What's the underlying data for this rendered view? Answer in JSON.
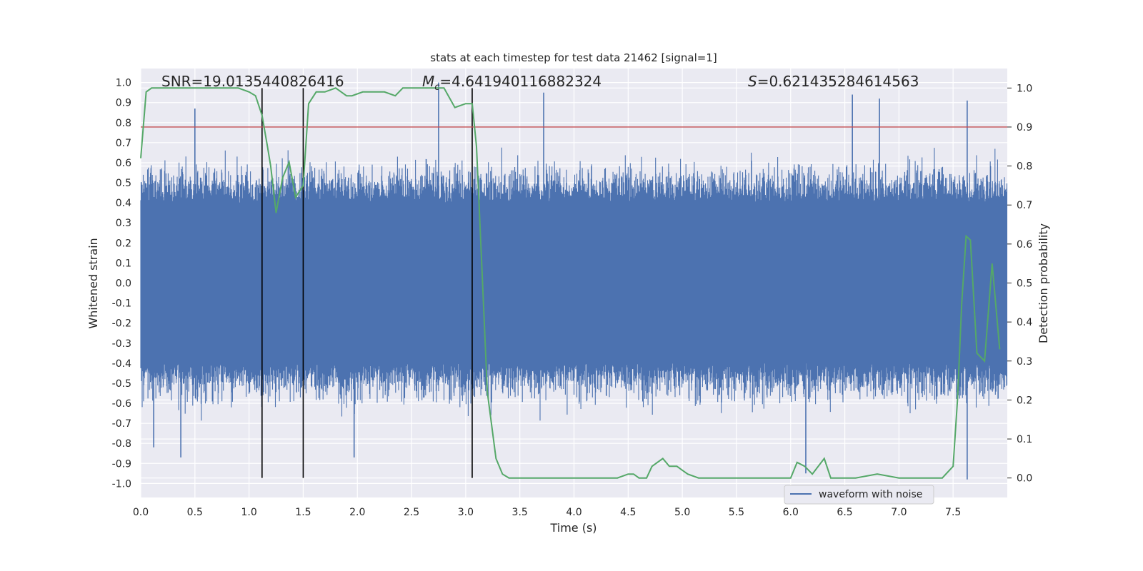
{
  "chart_data": {
    "type": "line",
    "title": "stats at each timestep for test data 21462 [signal=1]",
    "xlabel": "Time (s)",
    "ylabel_left": "Whitened strain",
    "ylabel_right": "Detection probability",
    "xlim": [
      0,
      8
    ],
    "ylim_left": [
      -1.07,
      1.07
    ],
    "ylim_right": [
      -0.05,
      1.05
    ],
    "x_ticks": [
      "0.0",
      "0.5",
      "1.0",
      "1.5",
      "2.0",
      "2.5",
      "3.0",
      "3.5",
      "4.0",
      "4.5",
      "5.0",
      "5.5",
      "6.0",
      "6.5",
      "7.0",
      "7.5"
    ],
    "x_tick_values": [
      0,
      0.5,
      1,
      1.5,
      2,
      2.5,
      3,
      3.5,
      4,
      4.5,
      5,
      5.5,
      6,
      6.5,
      7,
      7.5
    ],
    "y_left_ticks": [
      "1.0",
      "0.9",
      "0.8",
      "0.7",
      "0.6",
      "0.5",
      "0.4",
      "0.3",
      "0.2",
      "0.1",
      "0.0",
      "-0.1",
      "-0.2",
      "-0.3",
      "-0.4",
      "-0.5",
      "-0.6",
      "-0.7",
      "-0.8",
      "-0.9",
      "-1.0"
    ],
    "y_left_tick_values": [
      1.0,
      0.9,
      0.8,
      0.7,
      0.6,
      0.5,
      0.4,
      0.3,
      0.2,
      0.1,
      0.0,
      -0.1,
      -0.2,
      -0.3,
      -0.4,
      -0.5,
      -0.6,
      -0.7,
      -0.8,
      -0.9,
      -1.0
    ],
    "y_right_ticks": [
      "1.0",
      "0.9",
      "0.8",
      "0.7",
      "0.6",
      "0.5",
      "0.4",
      "0.3",
      "0.2",
      "0.1",
      "0.0"
    ],
    "y_right_tick_values": [
      1.0,
      0.9,
      0.8,
      0.7,
      0.6,
      0.5,
      0.4,
      0.3,
      0.2,
      0.1,
      0.0
    ],
    "annotations": {
      "snr": "SNR=19.0135440826416",
      "mc_symbol": "M",
      "mc_subscript": "c",
      "mc_value": "=4.641940116882324",
      "s_symbol": "S",
      "s_value": "=0.621435284614563"
    },
    "threshold": {
      "axis": "right",
      "value": 0.9,
      "color": "#c44e52"
    },
    "vertical_markers": [
      1.12,
      1.5,
      3.06
    ],
    "waveform": {
      "name": "waveform with noise",
      "color": "#4c72b0",
      "envelope_core": 0.4,
      "envelope_typical": 0.55,
      "notable_peaks": [
        {
          "x": 0.5,
          "y": 0.87
        },
        {
          "x": 2.75,
          "y": 1.0
        },
        {
          "x": 3.72,
          "y": 0.95
        },
        {
          "x": 6.57,
          "y": 0.94
        },
        {
          "x": 6.82,
          "y": 0.92
        },
        {
          "x": 7.63,
          "y": 0.91
        },
        {
          "x": 0.37,
          "y": -0.87
        },
        {
          "x": 1.97,
          "y": -0.87
        },
        {
          "x": 7.63,
          "y": -0.98
        },
        {
          "x": 6.14,
          "y": -0.95
        },
        {
          "x": 0.12,
          "y": -0.82
        }
      ]
    },
    "detection_probability": {
      "color": "#55a868",
      "x": [
        0.0,
        0.05,
        0.1,
        0.2,
        0.3,
        0.5,
        0.7,
        0.9,
        1.0,
        1.06,
        1.12,
        1.17,
        1.2,
        1.25,
        1.31,
        1.37,
        1.43,
        1.5,
        1.55,
        1.62,
        1.7,
        1.8,
        1.9,
        1.95,
        2.05,
        2.15,
        2.25,
        2.35,
        2.42,
        2.5,
        2.6,
        2.7,
        2.8,
        2.9,
        3.0,
        3.06,
        3.1,
        3.14,
        3.2,
        3.28,
        3.34,
        3.4,
        3.6,
        3.8,
        4.0,
        4.2,
        4.4,
        4.5,
        4.55,
        4.6,
        4.67,
        4.72,
        4.82,
        4.88,
        4.95,
        5.0,
        5.05,
        5.15,
        5.3,
        5.5,
        5.8,
        6.0,
        6.06,
        6.13,
        6.2,
        6.31,
        6.37,
        6.45,
        6.6,
        6.8,
        7.0,
        7.2,
        7.4,
        7.5,
        7.54,
        7.58,
        7.62,
        7.66,
        7.72,
        7.79,
        7.86,
        7.93
      ],
      "y": [
        0.82,
        0.99,
        1.0,
        1.0,
        1.0,
        1.0,
        1.0,
        1.0,
        0.99,
        0.98,
        0.93,
        0.85,
        0.8,
        0.68,
        0.77,
        0.81,
        0.72,
        0.75,
        0.96,
        0.99,
        0.99,
        1.0,
        0.98,
        0.98,
        0.99,
        0.99,
        0.99,
        0.98,
        1.0,
        1.0,
        1.0,
        1.0,
        1.0,
        0.95,
        0.96,
        0.96,
        0.85,
        0.6,
        0.22,
        0.05,
        0.01,
        0.0,
        0.0,
        0.0,
        0.0,
        0.0,
        0.0,
        0.01,
        0.01,
        0.0,
        0.0,
        0.03,
        0.05,
        0.03,
        0.03,
        0.02,
        0.01,
        0.0,
        0.0,
        0.0,
        0.0,
        0.0,
        0.04,
        0.03,
        0.01,
        0.05,
        0.0,
        0.0,
        0.0,
        0.01,
        0.0,
        0.0,
        0.0,
        0.03,
        0.2,
        0.45,
        0.62,
        0.61,
        0.32,
        0.3,
        0.55,
        0.33
      ]
    },
    "legend": {
      "label": "waveform with noise",
      "placement": "lower-right"
    }
  }
}
